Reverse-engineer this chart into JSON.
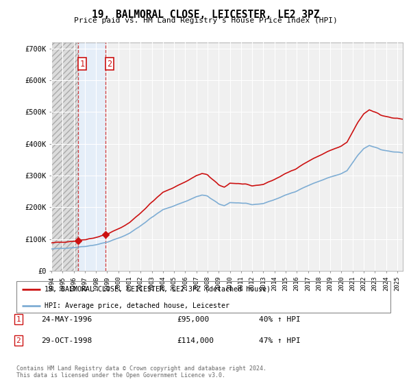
{
  "title": "19, BALMORAL CLOSE, LEICESTER, LE2 3PZ",
  "subtitle": "Price paid vs. HM Land Registry's House Price Index (HPI)",
  "legend_line1": "19, BALMORAL CLOSE, LEICESTER, LE2 3PZ (detached house)",
  "legend_line2": "HPI: Average price, detached house, Leicester",
  "footer1": "Contains HM Land Registry data © Crown copyright and database right 2024.",
  "footer2": "This data is licensed under the Open Government Licence v3.0.",
  "table": [
    {
      "num": "1",
      "date": "24-MAY-1996",
      "price": "£95,000",
      "change": "40% ↑ HPI"
    },
    {
      "num": "2",
      "date": "29-OCT-1998",
      "price": "£114,000",
      "change": "47% ↑ HPI"
    }
  ],
  "sale1_year": 1996.38,
  "sale1_price": 95000,
  "sale2_year": 1998.83,
  "sale2_price": 114000,
  "hpi_color": "#7eadd4",
  "price_color": "#cc1111",
  "shade_color": "#ddeeff",
  "ylim_max": 720000,
  "ylim_min": 0,
  "xmin": 1994.0,
  "xmax": 2025.5,
  "bg_color": "#f0f0f0",
  "grid_color": "#ffffff"
}
